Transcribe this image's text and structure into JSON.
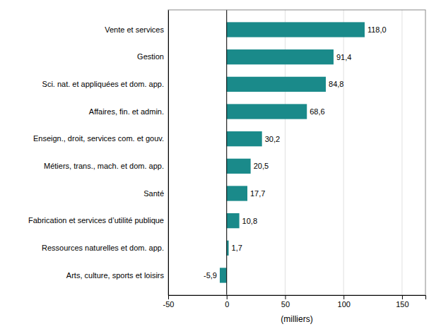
{
  "chart_data": {
    "type": "bar",
    "orientation": "horizontal",
    "categories": [
      "Arts, culture, sports et loisirs",
      "Ressources naturelles et dom. app.",
      "Fabrication et services d’utilité publique",
      "Santé",
      "Métiers, trans., mach. et dom. app.",
      "Enseign., droit, services com. et gouv.",
      "Affaires, fin. et admin.",
      "Sci. nat. et appliquées et dom. app.",
      "Gestion",
      "Vente et services"
    ],
    "values": [
      -5.9,
      1.7,
      10.8,
      17.7,
      20.5,
      30.2,
      68.6,
      84.8,
      91.4,
      118.0
    ],
    "value_labels": [
      "-5,9",
      "1,7",
      "10,8",
      "17,7",
      "20,5",
      "30,2",
      "68,6",
      "84,8",
      "91,4",
      "118,0"
    ],
    "color": "#1a8a8a",
    "xlabel": "(milliers)",
    "xlim": [
      -50,
      170
    ],
    "xticks": [
      -50,
      0,
      50,
      100,
      150
    ],
    "grid": true,
    "data_labels": true
  }
}
